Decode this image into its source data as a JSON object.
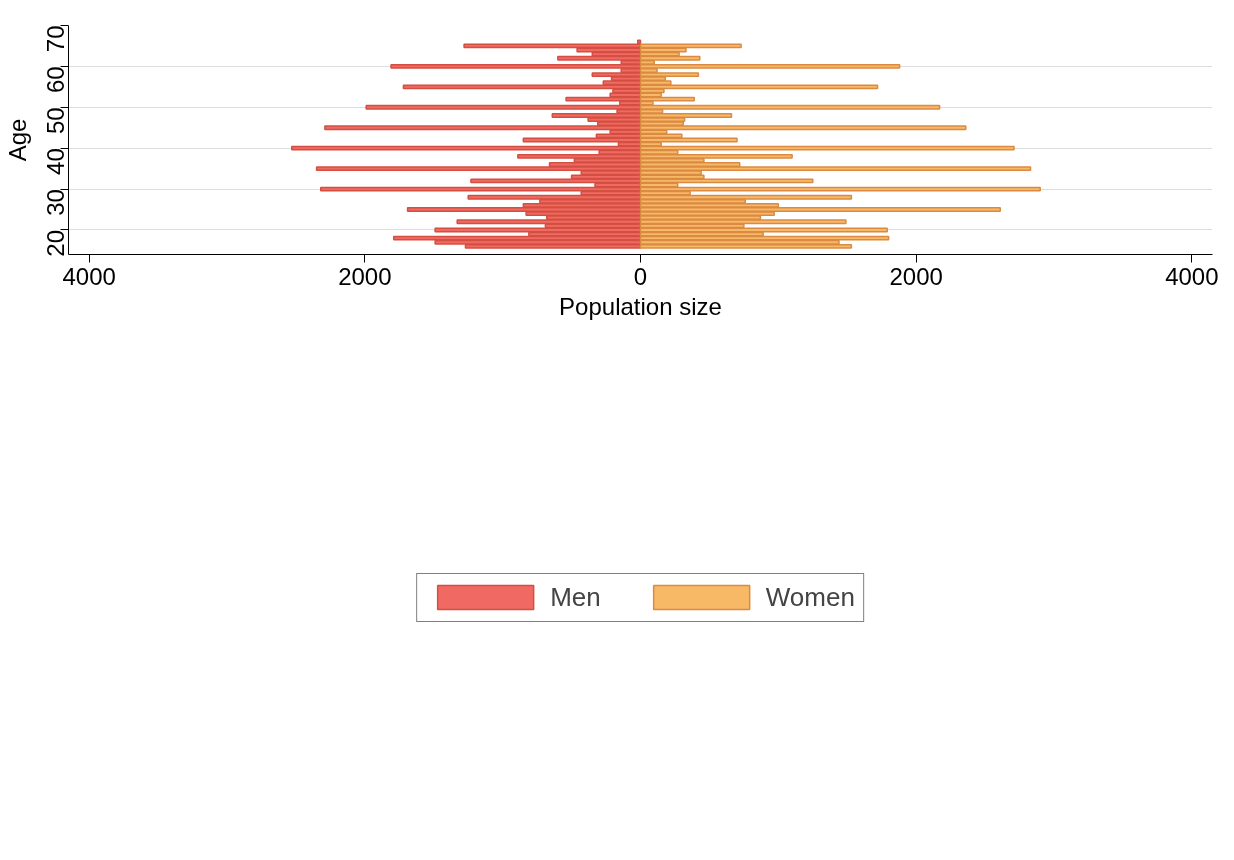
{
  "chart_data": {
    "type": "bar",
    "orientation": "horizontal",
    "xlabel": "Population size",
    "ylabel": "Age",
    "x": [
      66,
      65,
      64,
      63,
      62,
      61,
      60,
      59,
      58,
      57,
      56,
      55,
      54,
      53,
      52,
      51,
      50,
      49,
      48,
      47,
      46,
      45,
      44,
      43,
      42,
      41,
      40,
      39,
      38,
      37,
      36,
      35,
      34,
      33,
      32,
      31,
      30,
      29,
      28,
      27,
      26,
      25,
      24,
      23,
      22,
      21,
      20,
      19,
      18,
      17,
      16
    ],
    "series": [
      {
        "name": "Men",
        "color": "#f06a63",
        "values": [
          -20,
          -1280,
          -460,
          -350,
          -600,
          -140,
          -1810,
          -140,
          -350,
          -210,
          -270,
          -1720,
          -200,
          -220,
          -540,
          -150,
          -1990,
          -170,
          -640,
          -380,
          -310,
          -2290,
          -220,
          -320,
          -850,
          -160,
          -2530,
          -300,
          -890,
          -480,
          -660,
          -2350,
          -430,
          -500,
          -1230,
          -330,
          -2320,
          -430,
          -1250,
          -730,
          -850,
          -1690,
          -830,
          -680,
          -1330,
          -690,
          -1490,
          -810,
          -1790,
          -1490,
          -1270
        ]
      },
      {
        "name": "Women",
        "color": "#f8b966",
        "values": [
          null,
          730,
          330,
          280,
          430,
          100,
          1880,
          120,
          420,
          180,
          220,
          1720,
          170,
          150,
          390,
          90,
          2170,
          160,
          660,
          320,
          310,
          2360,
          190,
          300,
          700,
          150,
          2710,
          270,
          1100,
          460,
          720,
          2830,
          440,
          460,
          1250,
          270,
          2900,
          360,
          1530,
          760,
          1000,
          2610,
          970,
          870,
          1490,
          750,
          1790,
          890,
          1800,
          1440,
          1530
        ]
      }
    ],
    "xlim": [
      -4150,
      4150
    ],
    "xticks": [
      {
        "value": -4000,
        "label": "4000"
      },
      {
        "value": -2000,
        "label": "2000"
      },
      0,
      2000,
      4000
    ],
    "ylim": [
      14,
      70
    ],
    "yticks": [
      20,
      30,
      40,
      50,
      60,
      70
    ],
    "grid": "y",
    "legend": "bottom",
    "stacked": true
  }
}
